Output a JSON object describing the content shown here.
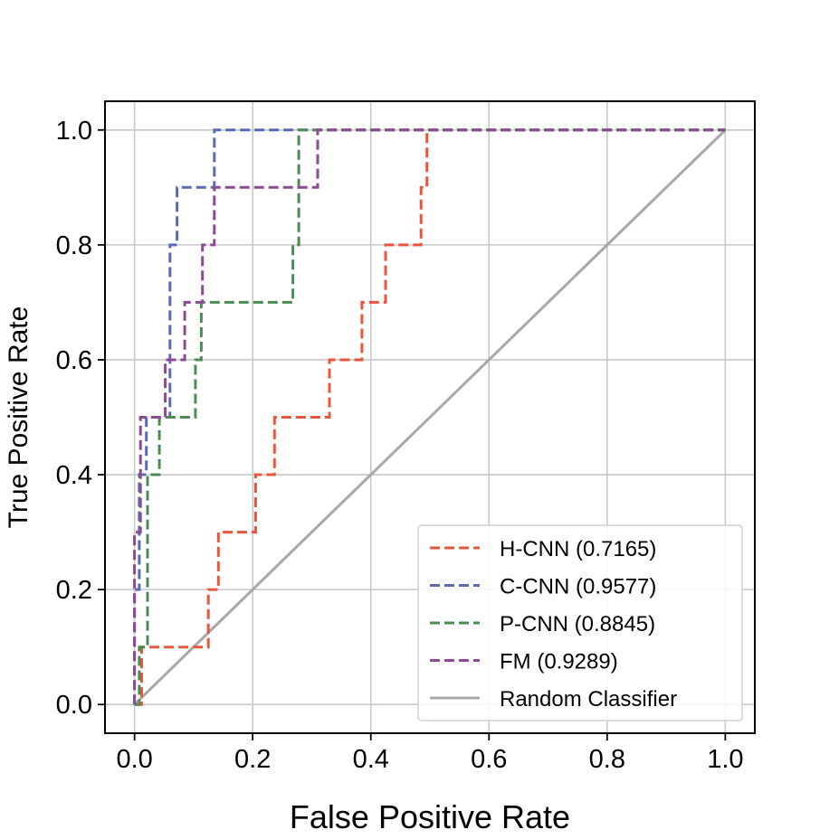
{
  "chart_data": {
    "type": "line",
    "title": "",
    "xlabel": "False Positive Rate",
    "ylabel": "True Positive Rate",
    "xlim": [
      -0.05,
      1.05
    ],
    "ylim": [
      -0.05,
      1.05
    ],
    "xticks": [
      0.0,
      0.2,
      0.4,
      0.6,
      0.8,
      1.0
    ],
    "yticks": [
      0.0,
      0.2,
      0.4,
      0.6,
      0.8,
      1.0
    ],
    "xtick_labels": [
      "0.0",
      "0.2",
      "0.4",
      "0.6",
      "0.8",
      "1.0"
    ],
    "ytick_labels": [
      "0.0",
      "0.2",
      "0.4",
      "0.6",
      "0.8",
      "1.0"
    ],
    "grid": true,
    "legend_position": "lower-right",
    "series": [
      {
        "name": "H-CNN (0.7165)",
        "color": "#e8563f",
        "style": "dashed",
        "x": [
          0.0,
          0.0,
          0.012,
          0.012,
          0.125,
          0.125,
          0.142,
          0.142,
          0.205,
          0.205,
          0.237,
          0.237,
          0.33,
          0.33,
          0.385,
          0.385,
          0.425,
          0.425,
          0.485,
          0.485,
          0.495,
          0.495,
          1.0
        ],
        "y": [
          0.0,
          0.0,
          0.0,
          0.1,
          0.1,
          0.2,
          0.2,
          0.3,
          0.3,
          0.4,
          0.4,
          0.5,
          0.5,
          0.6,
          0.6,
          0.7,
          0.7,
          0.8,
          0.8,
          0.9,
          0.9,
          1.0,
          1.0
        ]
      },
      {
        "name": "C-CNN (0.9577)",
        "color": "#5b6bb3",
        "style": "dashed",
        "x": [
          0.0,
          0.0,
          0.008,
          0.008,
          0.02,
          0.02,
          0.06,
          0.06,
          0.072,
          0.072,
          0.135,
          0.135,
          1.0
        ],
        "y": [
          0.0,
          0.2,
          0.2,
          0.4,
          0.4,
          0.5,
          0.5,
          0.8,
          0.8,
          0.9,
          0.9,
          1.0,
          1.0
        ]
      },
      {
        "name": "P-CNN (0.8845)",
        "color": "#4a8c54",
        "style": "dashed",
        "x": [
          0.0,
          0.008,
          0.008,
          0.022,
          0.022,
          0.042,
          0.042,
          0.103,
          0.103,
          0.113,
          0.113,
          0.268,
          0.268,
          0.278,
          0.278,
          1.0
        ],
        "y": [
          0.0,
          0.0,
          0.1,
          0.1,
          0.4,
          0.4,
          0.5,
          0.5,
          0.6,
          0.6,
          0.7,
          0.7,
          0.8,
          0.8,
          1.0,
          1.0
        ]
      },
      {
        "name": "FM (0.9289)",
        "color": "#8a4a94",
        "style": "dashed",
        "x": [
          0.0,
          0.0,
          0.01,
          0.01,
          0.052,
          0.052,
          0.085,
          0.085,
          0.115,
          0.115,
          0.135,
          0.135,
          0.31,
          0.31,
          1.0
        ],
        "y": [
          0.0,
          0.3,
          0.3,
          0.5,
          0.5,
          0.6,
          0.6,
          0.7,
          0.7,
          0.8,
          0.8,
          0.9,
          0.9,
          1.0,
          1.0
        ]
      },
      {
        "name": "Random Classifier",
        "color": "#a8a8a8",
        "style": "solid",
        "x": [
          0.0,
          1.0
        ],
        "y": [
          0.0,
          1.0
        ]
      }
    ]
  }
}
